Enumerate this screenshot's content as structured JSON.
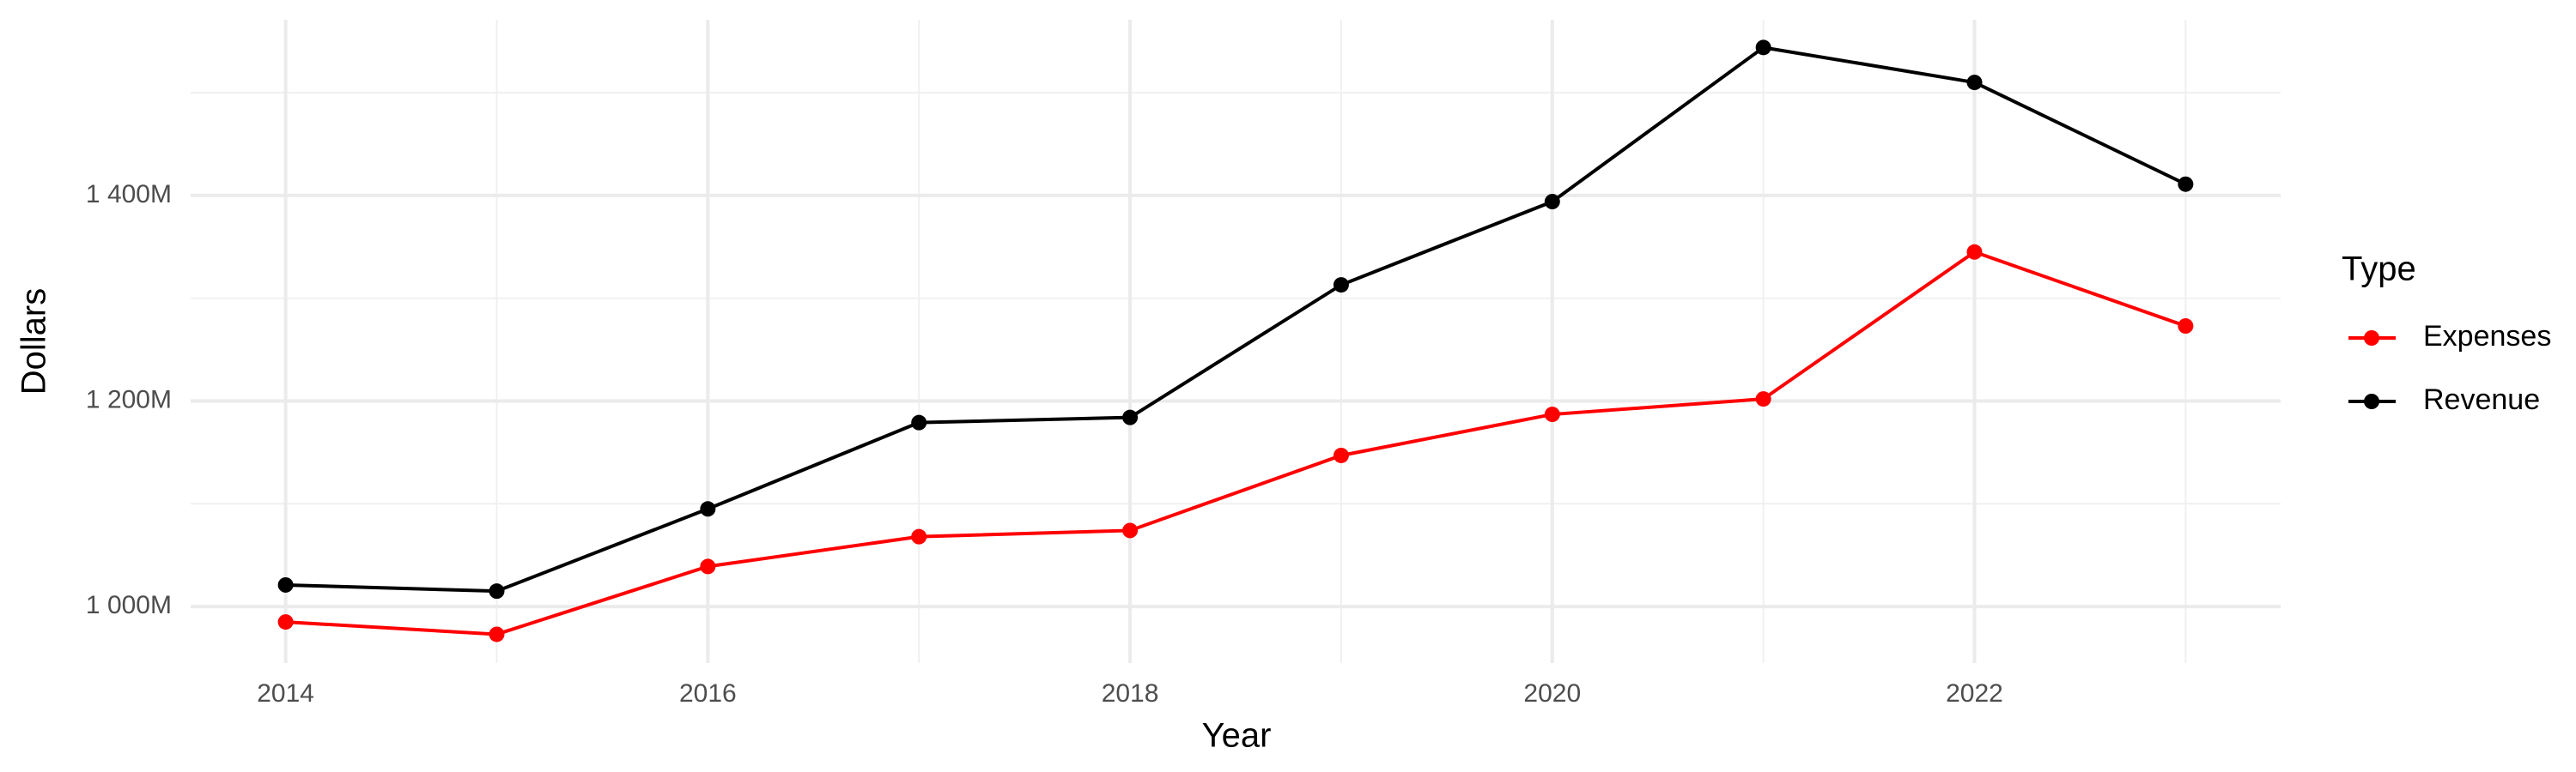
{
  "chart_data": {
    "type": "line",
    "x_label": "Year",
    "y_label": "Dollars",
    "legend_title": "Type",
    "x": [
      2014,
      2015,
      2016,
      2017,
      2018,
      2019,
      2020,
      2021,
      2022,
      2023
    ],
    "series": [
      {
        "name": "Expenses",
        "color": "#ff0000",
        "values": [
          985000000,
          973000000,
          1039000000,
          1068000000,
          1074000000,
          1147000000,
          1187000000,
          1202000000,
          1345000000,
          1273000000
        ]
      },
      {
        "name": "Revenue",
        "color": "#000000",
        "values": [
          1021000000,
          1015000000,
          1095000000,
          1179000000,
          1184000000,
          1313000000,
          1394000000,
          1544000000,
          1510000000,
          1411000000
        ]
      }
    ],
    "xlim": [
      2013.55,
      2023.45
    ],
    "xticks": [
      2014,
      2016,
      2018,
      2020,
      2022
    ],
    "ylim": [
      945000000,
      1571000000
    ],
    "yticks": [
      {
        "value": 1000000000,
        "label": "1 000M"
      },
      {
        "value": 1200000000,
        "label": "1 200M"
      },
      {
        "value": 1400000000,
        "label": "1 400M"
      }
    ],
    "grid": true,
    "legend": "right"
  }
}
